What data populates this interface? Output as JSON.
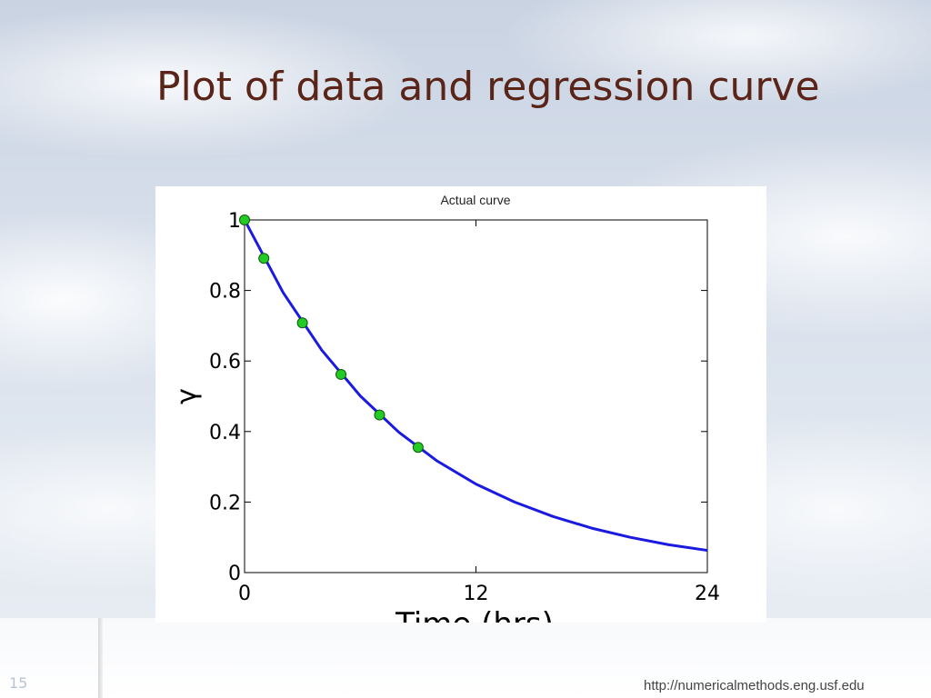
{
  "slide": {
    "title": "Plot of data and regression curve",
    "number": "15",
    "footer_url": "http://numericalmethods.eng.usf.edu"
  },
  "chart_data": {
    "type": "scatter",
    "title": "Actual curve",
    "xlabel": "Time (hrs)",
    "ylabel": "γ",
    "xlim": [
      0,
      24
    ],
    "ylim": [
      0,
      1
    ],
    "xticks": [
      0,
      12,
      24
    ],
    "yticks": [
      0,
      0.2,
      0.4,
      0.6,
      0.8,
      1
    ],
    "xtick_labels": [
      "0",
      "12",
      "24"
    ],
    "ytick_labels": [
      "0",
      "0.2",
      "0.4",
      "0.6",
      "0.8",
      "1"
    ],
    "grid": false,
    "series": [
      {
        "kind": "points",
        "color": "#22cc22",
        "x": [
          0,
          1,
          3,
          5,
          7,
          9
        ],
        "y": [
          1.0,
          0.891,
          0.708,
          0.562,
          0.447,
          0.355
        ]
      },
      {
        "kind": "curve",
        "color": "#1a1ae0",
        "x": [
          0,
          2,
          4,
          6,
          8,
          10,
          12,
          14,
          16,
          18,
          20,
          22,
          24
        ],
        "y": [
          1.0,
          0.794,
          0.631,
          0.501,
          0.398,
          0.316,
          0.251,
          0.2,
          0.159,
          0.126,
          0.1,
          0.079,
          0.063
        ]
      }
    ],
    "colors": {
      "axes": "#000000",
      "background": "#ffffff"
    }
  }
}
